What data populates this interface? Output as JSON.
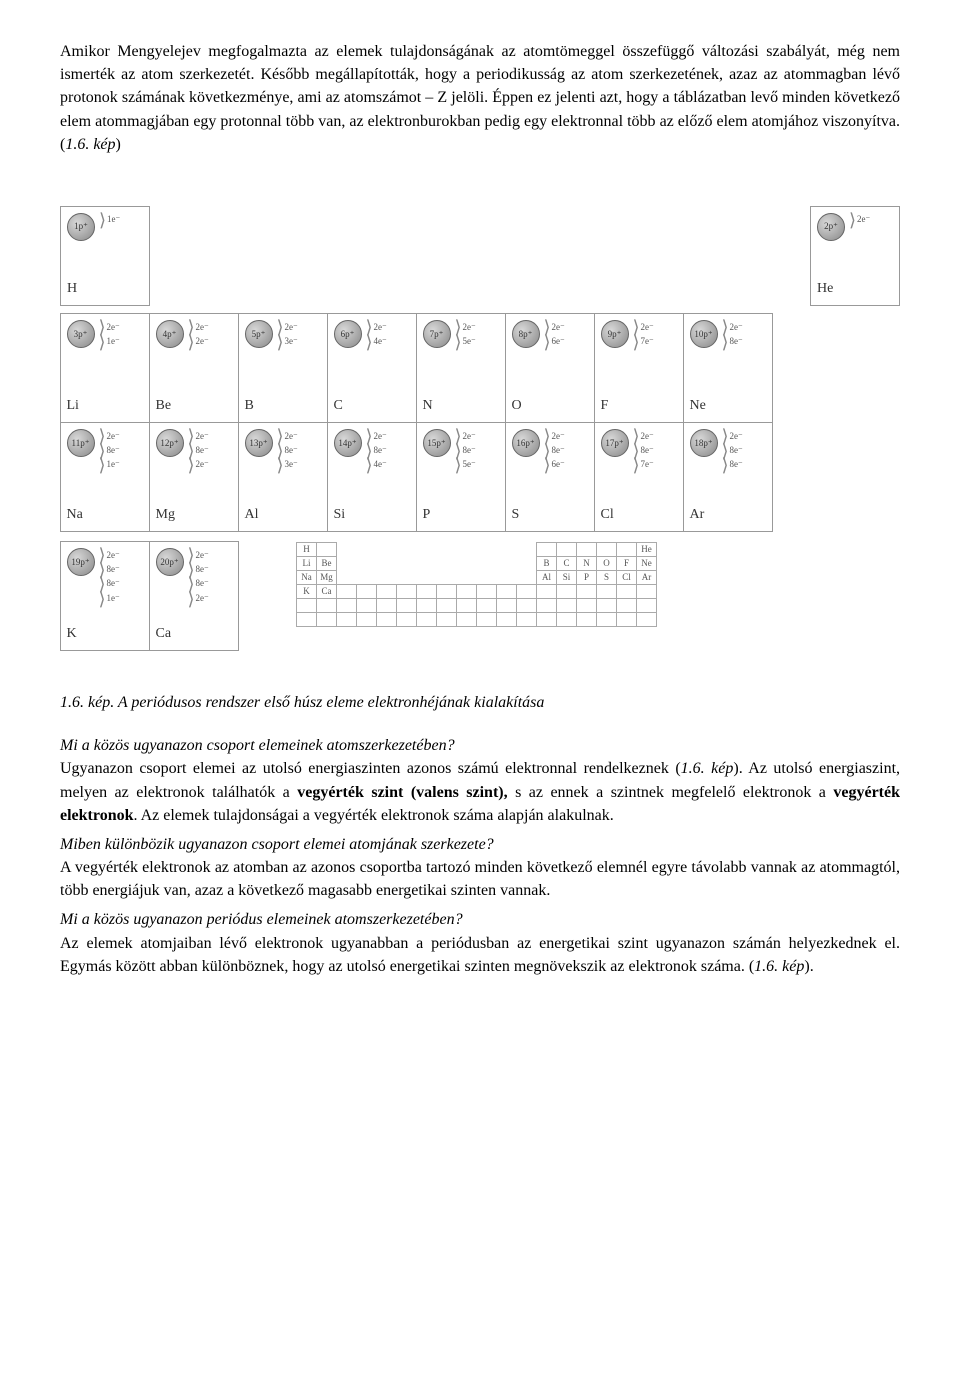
{
  "paragraphs": {
    "intro": "Amikor Mengyelejev megfogalmazta az elemek tulajdonságának az atomtömeggel összefüggő változási szabályát, még nem ismerték az atom szerkezetét. Később megállapították, hogy a periodikusság az atom szerkezetének, azaz az atommagban lévő protonok számának következménye, ami az atomszámot – Z jelöli. Éppen ez jelenti azt, hogy a táblázatban levő minden következő elem atommagjában egy protonnal több van, az elektronburokban pedig egy elektronnal több az előző elem atomjához viszonyítva. (",
    "intro_ref": "1.6. kép",
    "intro_close": ")"
  },
  "elements": {
    "row1_left": {
      "p": "1p⁺",
      "shells": [
        "1e⁻"
      ],
      "sym": "H"
    },
    "row1_right": {
      "p": "2p⁺",
      "shells": [
        "2e⁻"
      ],
      "sym": "He"
    },
    "row2": [
      {
        "p": "3p⁺",
        "shells": [
          "2e⁻",
          "1e⁻"
        ],
        "sym": "Li"
      },
      {
        "p": "4p⁺",
        "shells": [
          "2e⁻",
          "2e⁻"
        ],
        "sym": "Be"
      },
      {
        "p": "5p⁺",
        "shells": [
          "2e⁻",
          "3e⁻"
        ],
        "sym": "B"
      },
      {
        "p": "6p⁺",
        "shells": [
          "2e⁻",
          "4e⁻"
        ],
        "sym": "C"
      },
      {
        "p": "7p⁺",
        "shells": [
          "2e⁻",
          "5e⁻"
        ],
        "sym": "N"
      },
      {
        "p": "8p⁺",
        "shells": [
          "2e⁻",
          "6e⁻"
        ],
        "sym": "O"
      },
      {
        "p": "9p⁺",
        "shells": [
          "2e⁻",
          "7e⁻"
        ],
        "sym": "F"
      },
      {
        "p": "10p⁺",
        "shells": [
          "2e⁻",
          "8e⁻"
        ],
        "sym": "Ne"
      }
    ],
    "row3": [
      {
        "p": "11p⁺",
        "shells": [
          "2e⁻",
          "8e⁻",
          "1e⁻"
        ],
        "sym": "Na"
      },
      {
        "p": "12p⁺",
        "shells": [
          "2e⁻",
          "8e⁻",
          "2e⁻"
        ],
        "sym": "Mg"
      },
      {
        "p": "13p⁺",
        "shells": [
          "2e⁻",
          "8e⁻",
          "3e⁻"
        ],
        "sym": "Al"
      },
      {
        "p": "14p⁺",
        "shells": [
          "2e⁻",
          "8e⁻",
          "4e⁻"
        ],
        "sym": "Si"
      },
      {
        "p": "15p⁺",
        "shells": [
          "2e⁻",
          "8e⁻",
          "5e⁻"
        ],
        "sym": "P"
      },
      {
        "p": "16p⁺",
        "shells": [
          "2e⁻",
          "8e⁻",
          "6e⁻"
        ],
        "sym": "S"
      },
      {
        "p": "17p⁺",
        "shells": [
          "2e⁻",
          "8e⁻",
          "7e⁻"
        ],
        "sym": "Cl"
      },
      {
        "p": "18p⁺",
        "shells": [
          "2e⁻",
          "8e⁻",
          "8e⁻"
        ],
        "sym": "Ar"
      }
    ],
    "row4": [
      {
        "p": "19p⁺",
        "shells": [
          "2e⁻",
          "8e⁻",
          "8e⁻",
          "1e⁻"
        ],
        "sym": "K"
      },
      {
        "p": "20p⁺",
        "shells": [
          "2e⁻",
          "8e⁻",
          "8e⁻",
          "2e⁻"
        ],
        "sym": "Ca"
      }
    ]
  },
  "mini_table": [
    [
      "H",
      "",
      "",
      "",
      "",
      "",
      "",
      "",
      "",
      "",
      "",
      "",
      "",
      "",
      "",
      "",
      "",
      "He"
    ],
    [
      "Li",
      "Be",
      "",
      "",
      "",
      "",
      "",
      "",
      "",
      "",
      "",
      "",
      "B",
      "C",
      "N",
      "O",
      "F",
      "Ne"
    ],
    [
      "Na",
      "Mg",
      "",
      "",
      "",
      "",
      "",
      "",
      "",
      "",
      "",
      "",
      "Al",
      "Si",
      "P",
      "S",
      "Cl",
      "Ar"
    ],
    [
      "K",
      "Ca",
      "",
      "",
      "",
      "",
      "",
      "",
      "",
      "",
      "",
      "",
      "",
      "",
      "",
      "",
      "",
      ""
    ],
    [
      "",
      "",
      "",
      "",
      "",
      "",
      "",
      "",
      "",
      "",
      "",
      "",
      "",
      "",
      "",
      "",
      "",
      ""
    ],
    [
      "",
      "",
      "",
      "",
      "",
      "",
      "",
      "",
      "",
      "",
      "",
      "",
      "",
      "",
      "",
      "",
      "",
      ""
    ]
  ],
  "caption": "1.6. kép. A periódusos rendszer első húsz eleme elektronhéjának kialakítása",
  "q1": "Mi a közös ugyanazon csoport elemeinek atomszerkezetében?",
  "a1_pre": "Ugyanazon csoport elemei az utolsó energiaszinten azonos számú elektronnal rendelkeznek (",
  "a1_ref": "1.6. kép",
  "a1_mid": "). Az utolsó energiaszint, melyen az elektronok találhatók a ",
  "a1_b1": "vegyérték szint (valens szint),",
  "a1_mid2": " s az ennek a szintnek megfelelő elektronok a ",
  "a1_b2": "vegyérték elektronok",
  "a1_end": ". Az elemek tulajdonságai a vegyérték elektronok száma alapján alakulnak.",
  "q2": "Miben különbözik ugyanazon csoport elemei atomjának szerkezete?",
  "a2": "A vegyérték elektronok az atomban az azonos csoportba tartozó minden következő elemnél egyre távolabb vannak az atommagtól, több energiájuk van, azaz a következő magasabb energetikai szinten vannak.",
  "q3": "Mi a közös ugyanazon periódus elemeinek atomszerkezetében?",
  "a3_pre": "Az elemek atomjaiban lévő elektronok ugyanabban a periódusban az energetikai szint ugyanazon számán helyezkednek el. Egymás között abban különböznek, hogy az utolsó energetikai szinten megnövekszik az elektronok száma. (",
  "a3_ref": "1.6. kép",
  "a3_end": ")."
}
